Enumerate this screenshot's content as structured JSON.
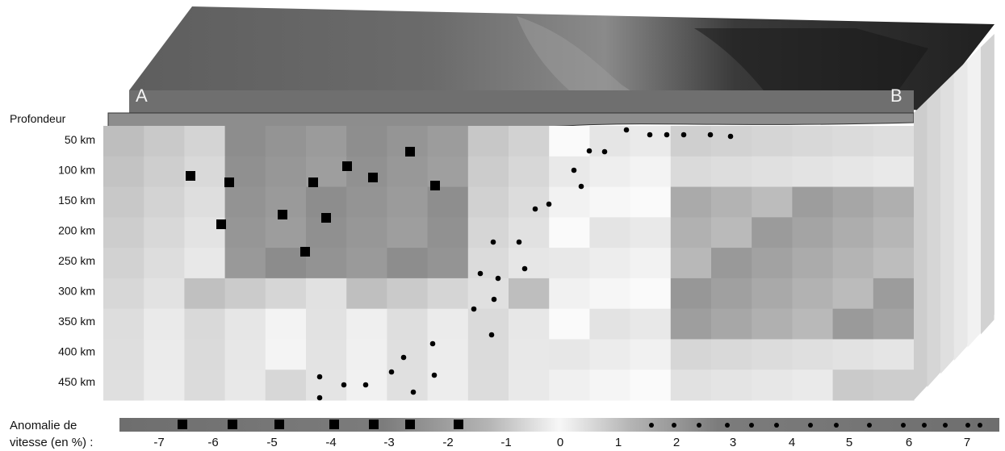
{
  "labels": {
    "point_a": "A",
    "point_b": "B",
    "depth_header": "Profondeur",
    "legend_title_line1": "Anomalie de",
    "legend_title_line2": "vitesse (en %) :"
  },
  "depths": [
    "50 km",
    "100 km",
    "150 km",
    "200 km",
    "250 km",
    "300 km",
    "350 km",
    "400 km",
    "450 km"
  ],
  "legend_ticks": [
    "-7",
    "-6",
    "-5",
    "-4",
    "-3",
    "-2",
    "-1",
    "0",
    "1",
    "2",
    "3",
    "4",
    "5",
    "6",
    "7"
  ],
  "colors": {
    "surface_dark": "#2a2a2a",
    "surface_mid": "#6f6f6f",
    "crust": "#8a8a8a",
    "marker": "#000000"
  }
}
